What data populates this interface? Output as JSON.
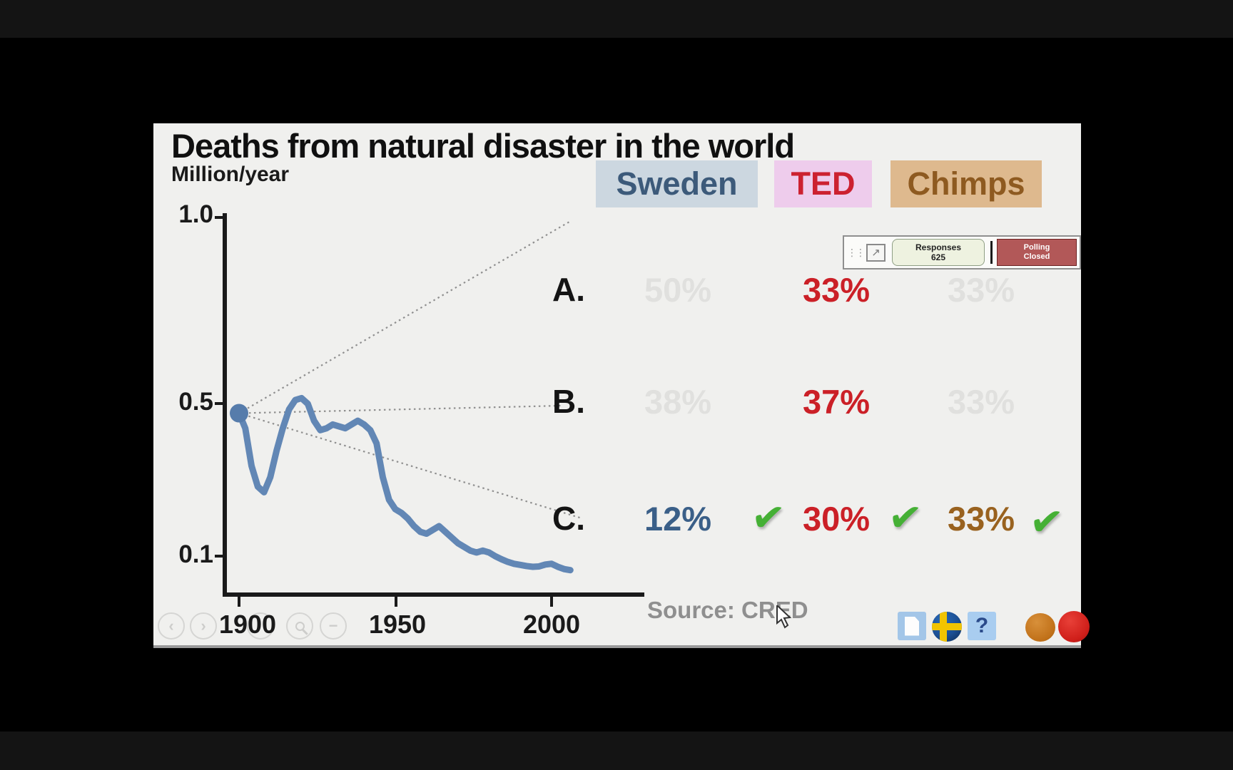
{
  "slide": {
    "title": "Deaths from natural disaster in the world",
    "y_axis_title": "Million/year",
    "source_text": "Source: CRED",
    "columns": {
      "sweden": "Sweden",
      "ted": "TED",
      "chimps": "Chimps"
    },
    "answer_rows": [
      {
        "label": "A.",
        "sweden": "50%",
        "ted": "33%",
        "chimps": "33%",
        "correct": false
      },
      {
        "label": "B.",
        "sweden": "38%",
        "ted": "37%",
        "chimps": "33%",
        "correct": false
      },
      {
        "label": "C.",
        "sweden": "12%",
        "ted": "30%",
        "chimps": "33%",
        "correct": true
      }
    ],
    "check_glyph": "✔",
    "help_glyph": "?",
    "icons": [
      "document-icon",
      "sweden-flag-icon",
      "question-mark-icon",
      "orange-dot",
      "red-dot"
    ],
    "colors": {
      "sweden_text": "#3c5a7a",
      "sweden_bg": "#ccd7e0",
      "ted_text": "#cc2130",
      "ted_bg": "#eeccec",
      "chimps_text": "#8e5a20",
      "chimps_bg": "#deb98e",
      "line": "#6287b5",
      "check_green": "#45b035",
      "faint_value": "#e0e0de",
      "red_value": "#cb2027",
      "blue_value": "#3a5f88",
      "brown_value": "#99621f"
    }
  },
  "polling": {
    "popout_glyph": "↗",
    "drag_glyph": "⋮⋮",
    "responses_label": "Responses",
    "responses_count": "625",
    "status": [
      "Polling",
      "Closed"
    ]
  },
  "nav_glyphs": {
    "prev": "‹",
    "next": "›",
    "minus": "−"
  },
  "chart_data": {
    "type": "line",
    "title": "Deaths from natural disaster in the world",
    "ylabel": "Million/year",
    "xlabel": "",
    "x_tick_labels": [
      "1900",
      "1950",
      "2000"
    ],
    "y_tick_labels": [
      "1.0",
      "0.5",
      "0.1"
    ],
    "x_ticks": [
      1900,
      1950,
      2000
    ],
    "y_ticks": [
      1.0,
      0.5,
      0.1
    ],
    "xlim": [
      1896,
      2012
    ],
    "ylim": [
      0,
      1.05
    ],
    "grid": false,
    "legend": "none",
    "start_point": {
      "year": 1900,
      "value": 0.48
    },
    "series": [
      {
        "name": "deaths-from-natural-disaster",
        "color": "#6287b5",
        "points": [
          [
            1900,
            0.48
          ],
          [
            1902,
            0.44
          ],
          [
            1904,
            0.34
          ],
          [
            1906,
            0.285
          ],
          [
            1908,
            0.27
          ],
          [
            1910,
            0.31
          ],
          [
            1912,
            0.38
          ],
          [
            1914,
            0.44
          ],
          [
            1916,
            0.49
          ],
          [
            1918,
            0.515
          ],
          [
            1920,
            0.52
          ],
          [
            1922,
            0.505
          ],
          [
            1924,
            0.46
          ],
          [
            1926,
            0.435
          ],
          [
            1928,
            0.44
          ],
          [
            1930,
            0.45
          ],
          [
            1932,
            0.445
          ],
          [
            1934,
            0.44
          ],
          [
            1936,
            0.45
          ],
          [
            1938,
            0.46
          ],
          [
            1940,
            0.45
          ],
          [
            1942,
            0.435
          ],
          [
            1944,
            0.4
          ],
          [
            1946,
            0.31
          ],
          [
            1948,
            0.25
          ],
          [
            1950,
            0.225
          ],
          [
            1952,
            0.215
          ],
          [
            1954,
            0.2
          ],
          [
            1956,
            0.18
          ],
          [
            1958,
            0.165
          ],
          [
            1960,
            0.16
          ],
          [
            1962,
            0.17
          ],
          [
            1964,
            0.18
          ],
          [
            1966,
            0.165
          ],
          [
            1968,
            0.15
          ],
          [
            1970,
            0.135
          ],
          [
            1972,
            0.125
          ],
          [
            1974,
            0.115
          ],
          [
            1976,
            0.11
          ],
          [
            1978,
            0.115
          ],
          [
            1980,
            0.11
          ],
          [
            1982,
            0.1
          ],
          [
            1984,
            0.092
          ],
          [
            1986,
            0.085
          ],
          [
            1988,
            0.08
          ],
          [
            1990,
            0.077
          ],
          [
            1992,
            0.074
          ],
          [
            1994,
            0.072
          ],
          [
            1996,
            0.073
          ],
          [
            1998,
            0.078
          ],
          [
            2000,
            0.08
          ],
          [
            2002,
            0.072
          ],
          [
            2004,
            0.066
          ],
          [
            2006,
            0.063
          ]
        ]
      }
    ],
    "projections": [
      {
        "label": "A.",
        "from": [
          1900,
          0.48
        ],
        "to": [
          2006,
          0.99
        ]
      },
      {
        "label": "B.",
        "from": [
          1900,
          0.48
        ],
        "to": [
          2003,
          0.5
        ]
      },
      {
        "label": "C.",
        "from": [
          1900,
          0.48
        ],
        "to": [
          2010,
          0.2
        ]
      }
    ]
  }
}
